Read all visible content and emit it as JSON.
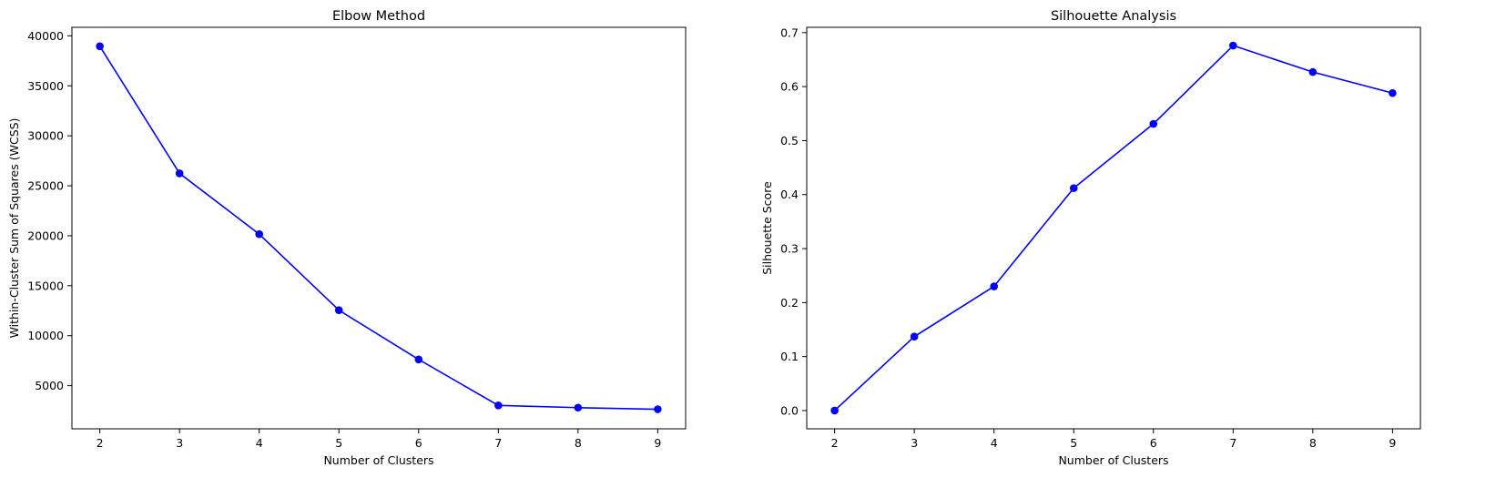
{
  "chart_data": [
    {
      "type": "line",
      "title": "Elbow Method",
      "xlabel": "Number of Clusters",
      "ylabel": "Within-Cluster Sum of Squares (WCSS)",
      "x": [
        2,
        3,
        4,
        5,
        6,
        7,
        8,
        9
      ],
      "xlim": [
        1.65,
        9.35
      ],
      "ylim": [
        683,
        40855
      ],
      "xticks": [
        2,
        3,
        4,
        5,
        6,
        7,
        8,
        9
      ],
      "yticks": [
        5000,
        10000,
        15000,
        20000,
        25000,
        30000,
        35000,
        40000
      ],
      "grid": false,
      "series": [
        {
          "color": "#0000ff",
          "marker": "circle",
          "values": [
            38960,
            26240,
            20160,
            12550,
            7620,
            3020,
            2800,
            2640
          ]
        }
      ]
    },
    {
      "type": "line",
      "title": "Silhouette Analysis",
      "xlabel": "Number of Clusters",
      "ylabel": "Silhouette Score",
      "x": [
        2,
        3,
        4,
        5,
        6,
        7,
        8,
        9
      ],
      "xlim": [
        1.65,
        9.35
      ],
      "ylim": [
        -0.0338,
        0.7098
      ],
      "xticks": [
        2,
        3,
        4,
        5,
        6,
        7,
        8,
        9
      ],
      "yticks": [
        0.0,
        0.1,
        0.2,
        0.3,
        0.4,
        0.5,
        0.6,
        0.7
      ],
      "ytick_labels": [
        "0.0",
        "0.1",
        "0.2",
        "0.3",
        "0.4",
        "0.5",
        "0.6",
        "0.7"
      ],
      "grid": false,
      "series": [
        {
          "color": "#0000ff",
          "marker": "circle",
          "values": [
            0.0,
            0.137,
            0.23,
            0.412,
            0.531,
            0.676,
            0.627,
            0.588
          ]
        }
      ]
    }
  ]
}
